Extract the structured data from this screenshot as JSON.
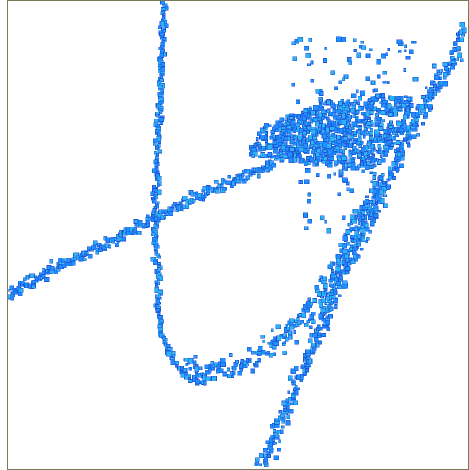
{
  "chart_data": {
    "type": "scatter",
    "title": "",
    "xlabel": "",
    "ylabel": "",
    "axes_ticks_shown": false,
    "grid": false,
    "legend": "none",
    "marker": "square",
    "colors": {
      "fill_light": "#2bb3f5",
      "fill_mid": "#1e90ff",
      "edge": "#1f56d6",
      "frame": "#7a7a58",
      "background": "#ffffff"
    },
    "structures": [
      {
        "id": "steep-line",
        "kind": "polyline",
        "points": [
          [
            0.34,
            0.0
          ],
          [
            0.33,
            0.2
          ],
          [
            0.32,
            0.45
          ],
          [
            0.325,
            0.6
          ],
          [
            0.33,
            0.7
          ],
          [
            0.36,
            0.77
          ],
          [
            0.39,
            0.8
          ],
          [
            0.43,
            0.82
          ]
        ],
        "width": 0.01,
        "density": 2
      },
      {
        "id": "left-diagonal",
        "kind": "polyline",
        "points": [
          [
            0.0,
            0.63
          ],
          [
            0.12,
            0.56
          ],
          [
            0.25,
            0.5
          ],
          [
            0.37,
            0.44
          ],
          [
            0.5,
            0.38
          ],
          [
            0.58,
            0.35
          ]
        ],
        "width": 0.018,
        "density": 3
      },
      {
        "id": "right-diagonal",
        "kind": "polyline",
        "points": [
          [
            0.55,
            1.0
          ],
          [
            0.62,
            0.84
          ],
          [
            0.7,
            0.64
          ],
          [
            0.78,
            0.47
          ],
          [
            0.85,
            0.33
          ],
          [
            0.92,
            0.2
          ],
          [
            0.98,
            0.1
          ],
          [
            1.0,
            0.05
          ]
        ],
        "width": 0.026,
        "density": 3
      },
      {
        "id": "lower-arc",
        "kind": "polyline",
        "points": [
          [
            0.38,
            0.78
          ],
          [
            0.44,
            0.8
          ],
          [
            0.52,
            0.77
          ],
          [
            0.6,
            0.72
          ],
          [
            0.66,
            0.66
          ],
          [
            0.7,
            0.6
          ],
          [
            0.73,
            0.55
          ],
          [
            0.76,
            0.49
          ],
          [
            0.79,
            0.43
          ],
          [
            0.81,
            0.38
          ]
        ],
        "width": 0.035,
        "density": 3
      },
      {
        "id": "dense-wedge",
        "kind": "polygon",
        "points": [
          [
            0.55,
            0.27
          ],
          [
            0.68,
            0.22
          ],
          [
            0.82,
            0.2
          ],
          [
            0.88,
            0.21
          ],
          [
            0.86,
            0.28
          ],
          [
            0.8,
            0.36
          ],
          [
            0.72,
            0.36
          ],
          [
            0.6,
            0.34
          ],
          [
            0.52,
            0.33
          ]
        ],
        "count": 900
      },
      {
        "id": "scatter-cloud",
        "kind": "box",
        "x": [
          0.62,
          0.96
        ],
        "y": [
          0.08,
          0.22
        ],
        "count": 70
      },
      {
        "id": "scatter-cloud-lower",
        "kind": "box",
        "x": [
          0.63,
          0.8
        ],
        "y": [
          0.36,
          0.5
        ],
        "count": 35
      }
    ]
  }
}
